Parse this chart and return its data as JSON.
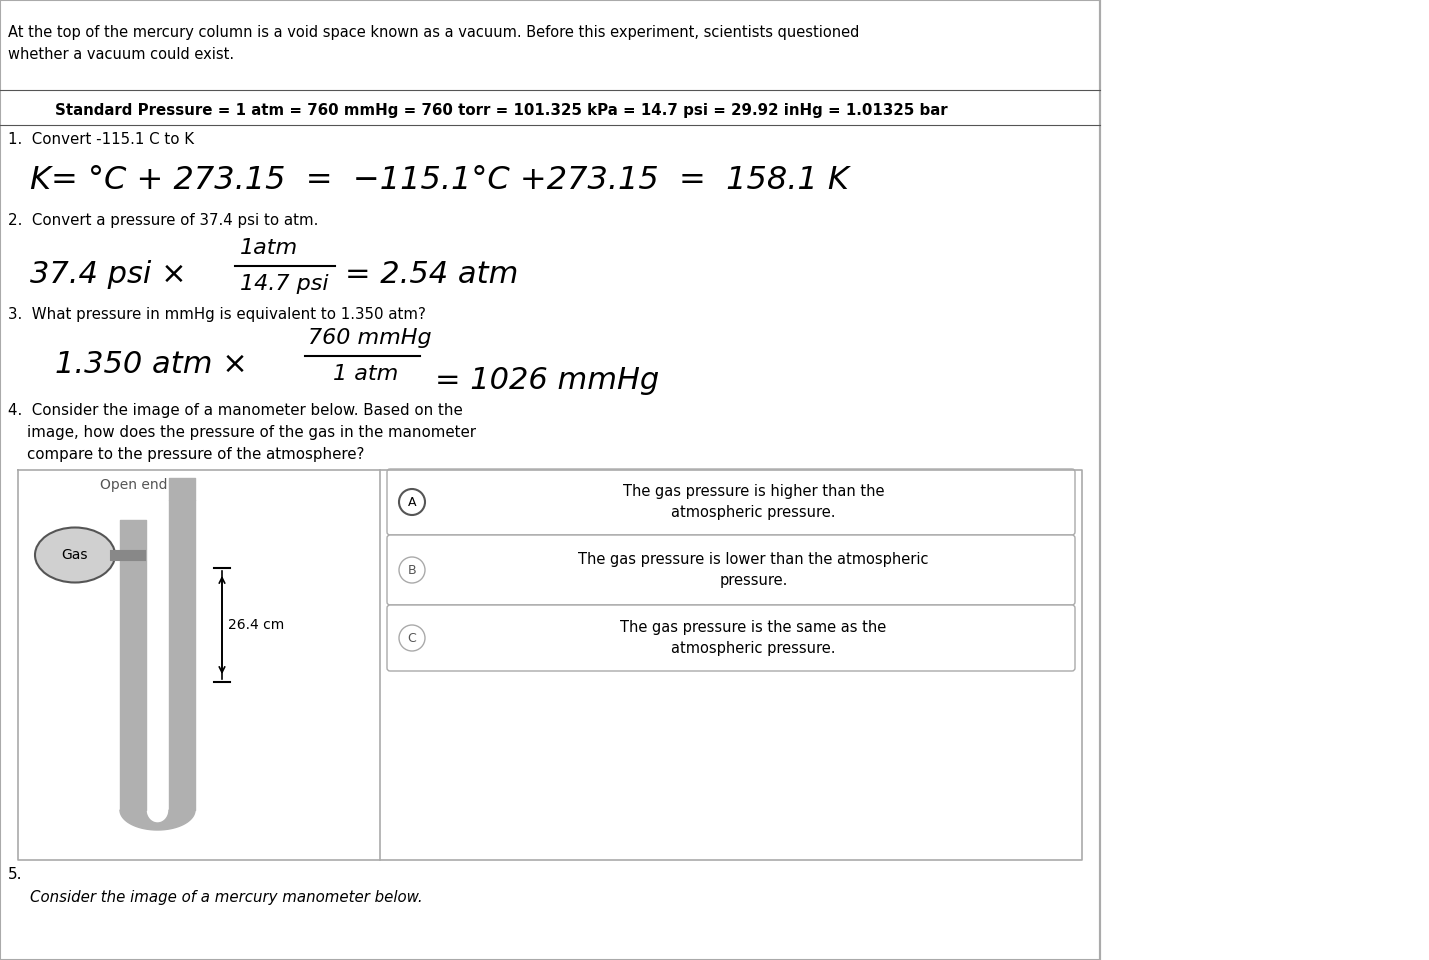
{
  "bg_color": "#ffffff",
  "top_text": "At the top of the mercury column is a void space known as a vacuum. Before this experiment, scientists questioned\nwhether a vacuum could exist.",
  "std_pressure_line": "Standard Pressure = 1 atm = 760 mmHg = 760 torr = 101.325 kPa = 14.7 psi = 29.92 inHg = 1.01325 bar",
  "q1_label": "1.  Convert -115.1 C to K",
  "q1_handwritten": "K= °C + 273.15  =  −115.1°C +273.15  =  158.1 K",
  "q2_label": "2.  Convert a pressure of 37.4 psi to atm.",
  "q2_handwritten_main": "37.4 psi ×",
  "q2_fraction_num": "1atm",
  "q2_fraction_den": "14.7 psi",
  "q2_result": "= 2.54 atm",
  "q3_label": "3.  What pressure in mmHg is equivalent to 1.350 atm?",
  "q3_handwritten_main": "1.350 atm ×",
  "q3_fraction_num": "760 mmHg",
  "q3_fraction_den": "1 atm",
  "q3_result": "= 1026 mmHg",
  "q4_label": "4.  Consider the image of a manometer below. Based on the\n    image, how does the pressure of the gas in the manometer\n    compare to the pressure of the atmosphere?",
  "opt_A_text": "The gas pressure is higher than the\natmospheric pressure.",
  "opt_B_text": "The gas pressure is lower than the atmospheric\npressure.",
  "opt_C_text": "The gas pressure is the same as the\natmospheric pressure.",
  "q5_label": "5.",
  "q5_sub": "Consider the image of a mercury manometer below.",
  "manometer_open_end": "Open end",
  "manometer_gas": "Gas",
  "manometer_measurement": "26.4 cm",
  "text_color": "#000000",
  "gray_color": "#555555",
  "light_gray": "#aaaaaa",
  "tube_color": "#b0b0b0",
  "tube_dark": "#888888"
}
